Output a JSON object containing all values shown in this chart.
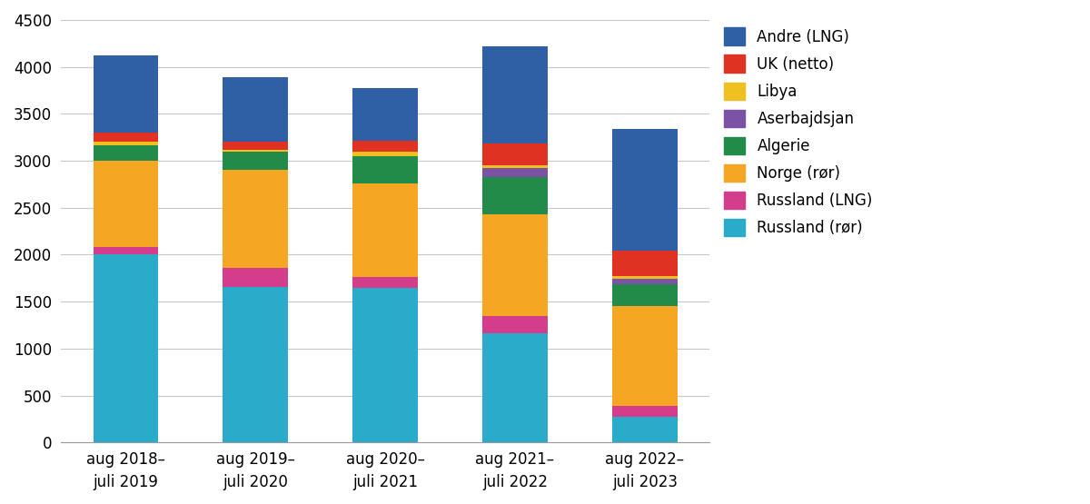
{
  "categories": [
    "aug 2018–\njuli 2019",
    "aug 2019–\njuli 2020",
    "aug 2020–\njuli 2021",
    "aug 2021–\njuli 2022",
    "aug 2022–\njuli 2023"
  ],
  "series": [
    {
      "label": "Russland (rør)",
      "color": "#2AABC9",
      "values": [
        2000,
        1660,
        1650,
        1160,
        270
      ]
    },
    {
      "label": "Russland (LNG)",
      "color": "#D43D8C",
      "values": [
        80,
        200,
        110,
        185,
        120
      ]
    },
    {
      "label": "Norge (rør)",
      "color": "#F5A623",
      "values": [
        920,
        1040,
        1000,
        1090,
        1060
      ]
    },
    {
      "label": "Algerie",
      "color": "#228B4A",
      "values": [
        170,
        195,
        290,
        390,
        240
      ]
    },
    {
      "label": "Aserbajdsjan",
      "color": "#7B52A6",
      "values": [
        0,
        0,
        0,
        100,
        55
      ]
    },
    {
      "label": "Libya",
      "color": "#F0C020",
      "values": [
        30,
        25,
        50,
        30,
        25
      ]
    },
    {
      "label": "UK (netto)",
      "color": "#E03222",
      "values": [
        100,
        80,
        110,
        230,
        275
      ]
    },
    {
      "label": "Andre (LNG)",
      "color": "#2F5FA5",
      "values": [
        820,
        690,
        560,
        1035,
        1295
      ]
    }
  ],
  "ylim": [
    0,
    4500
  ],
  "yticks": [
    0,
    500,
    1000,
    1500,
    2000,
    2500,
    3000,
    3500,
    4000,
    4500
  ],
  "background_color": "#ffffff",
  "grid_color": "#c8c8c8",
  "bar_width": 0.5
}
